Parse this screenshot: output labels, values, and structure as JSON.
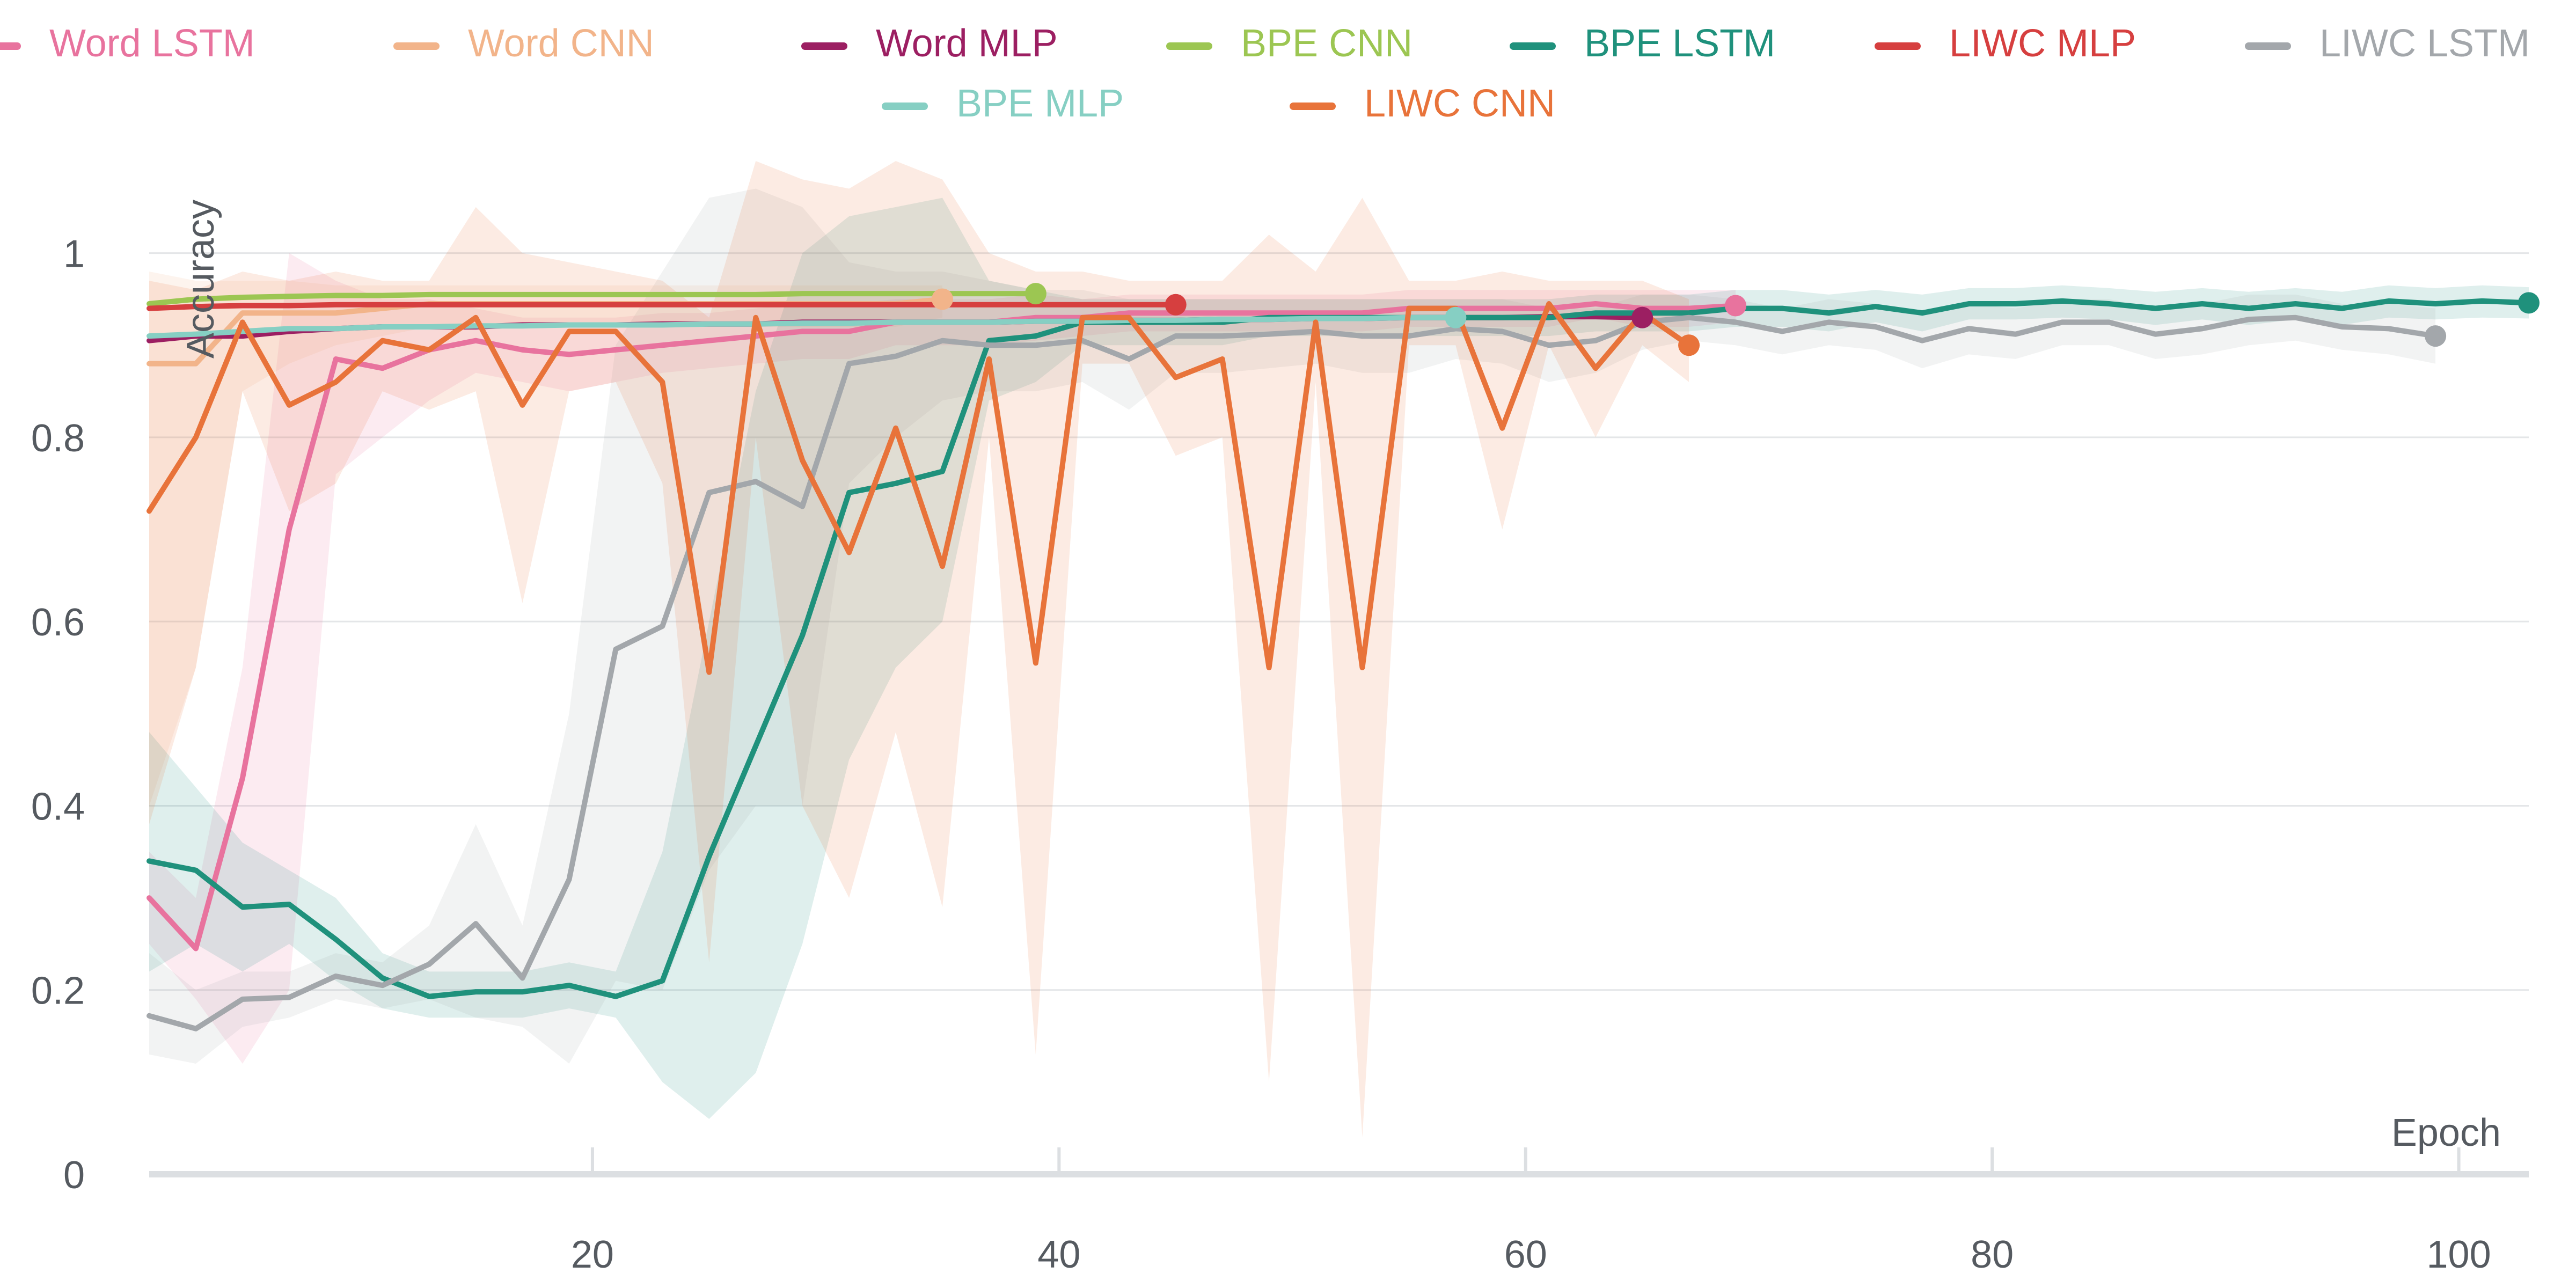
{
  "chart_data": {
    "type": "line",
    "title": "",
    "xlabel": "Epoch",
    "ylabel": "Accuracy",
    "xlim": [
      1,
      103
    ],
    "ylim": [
      0,
      1.1
    ],
    "x_ticks": [
      "20",
      "40",
      "60",
      "80",
      "100"
    ],
    "x_tick_values": [
      20,
      40,
      60,
      80,
      100
    ],
    "y_ticks": [
      "0",
      "0.2",
      "0.4",
      "0.6",
      "0.8",
      "1"
    ],
    "y_tick_values": [
      0,
      0.2,
      0.4,
      0.6,
      0.8,
      1.0
    ],
    "grid": "horizontal",
    "legend_position": "top",
    "series": [
      {
        "name": "Word LSTM",
        "color": "#e8739e",
        "x": [
          1,
          3,
          5,
          7,
          9,
          11,
          13,
          15,
          17,
          19,
          21,
          23,
          25,
          27,
          29,
          31,
          33,
          35,
          37,
          39,
          41,
          43,
          45,
          47,
          49,
          51,
          53,
          55,
          57,
          59,
          61,
          63,
          65,
          67,
          69
        ],
        "y": [
          0.3,
          0.245,
          0.43,
          0.7,
          0.885,
          0.875,
          0.895,
          0.905,
          0.895,
          0.89,
          0.895,
          0.9,
          0.905,
          0.91,
          0.915,
          0.915,
          0.925,
          0.925,
          0.925,
          0.93,
          0.93,
          0.935,
          0.935,
          0.935,
          0.935,
          0.935,
          0.935,
          0.94,
          0.94,
          0.94,
          0.94,
          0.945,
          0.94,
          0.94,
          0.943
        ],
        "band_upper": [
          0.35,
          0.3,
          0.55,
          1.0,
          0.97,
          0.95,
          0.95,
          0.94,
          0.93,
          0.93,
          0.93,
          0.935,
          0.935,
          0.94,
          0.945,
          0.945,
          0.95,
          0.95,
          0.95,
          0.955,
          0.95,
          0.955,
          0.955,
          0.955,
          0.955,
          0.955,
          0.955,
          0.96,
          0.96,
          0.96,
          0.96,
          0.96,
          0.96,
          0.96,
          0.96
        ],
        "band_lower": [
          0.25,
          0.19,
          0.12,
          0.2,
          0.76,
          0.8,
          0.84,
          0.87,
          0.86,
          0.85,
          0.86,
          0.87,
          0.875,
          0.88,
          0.885,
          0.885,
          0.9,
          0.9,
          0.9,
          0.905,
          0.91,
          0.915,
          0.915,
          0.915,
          0.915,
          0.915,
          0.915,
          0.92,
          0.92,
          0.92,
          0.92,
          0.93,
          0.92,
          0.92,
          0.925
        ]
      },
      {
        "name": "Word CNN",
        "color": "#f2b48a",
        "x": [
          1,
          3,
          5,
          7,
          9,
          11,
          13,
          15,
          17,
          19,
          21,
          23,
          25,
          27,
          29,
          31,
          33,
          35
        ],
        "y": [
          0.88,
          0.88,
          0.935,
          0.935,
          0.935,
          0.94,
          0.945,
          0.945,
          0.945,
          0.945,
          0.945,
          0.945,
          0.945,
          0.945,
          0.945,
          0.945,
          0.945,
          0.95
        ],
        "band_upper": [
          0.98,
          0.97,
          0.97,
          0.97,
          0.965,
          0.965,
          0.965,
          0.965,
          0.965,
          0.965,
          0.965,
          0.965,
          0.965,
          0.965,
          0.965,
          0.965,
          0.965,
          0.965
        ],
        "band_lower": [
          0.4,
          0.55,
          0.85,
          0.88,
          0.9,
          0.91,
          0.92,
          0.92,
          0.92,
          0.92,
          0.92,
          0.92,
          0.92,
          0.92,
          0.92,
          0.92,
          0.92,
          0.93
        ]
      },
      {
        "name": "Word MLP",
        "color": "#9c1f62",
        "x": [
          1,
          3,
          5,
          7,
          9,
          11,
          13,
          15,
          17,
          19,
          21,
          23,
          25,
          27,
          29,
          31,
          33,
          35,
          37,
          39,
          41,
          43,
          45,
          47,
          49,
          51,
          53,
          55,
          57,
          59,
          61,
          63,
          65
        ],
        "y": [
          0.905,
          0.91,
          0.91,
          0.915,
          0.918,
          0.92,
          0.92,
          0.92,
          0.922,
          0.922,
          0.922,
          0.923,
          0.923,
          0.923,
          0.925,
          0.925,
          0.925,
          0.925,
          0.925,
          0.926,
          0.926,
          0.927,
          0.927,
          0.928,
          0.928,
          0.929,
          0.929,
          0.93,
          0.93,
          0.93,
          0.931,
          0.931,
          0.93
        ]
      },
      {
        "name": "BPE CNN",
        "color": "#9cc652",
        "x": [
          1,
          3,
          5,
          7,
          9,
          11,
          13,
          15,
          17,
          19,
          21,
          23,
          25,
          27,
          29,
          31,
          33,
          35,
          37,
          39
        ],
        "y": [
          0.945,
          0.95,
          0.952,
          0.953,
          0.954,
          0.954,
          0.955,
          0.955,
          0.955,
          0.955,
          0.955,
          0.955,
          0.955,
          0.955,
          0.956,
          0.956,
          0.956,
          0.956,
          0.956,
          0.956
        ]
      },
      {
        "name": "BPE LSTM",
        "color": "#1f917c",
        "x": [
          1,
          3,
          5,
          7,
          9,
          11,
          13,
          15,
          17,
          19,
          21,
          23,
          25,
          27,
          29,
          31,
          33,
          35,
          37,
          39,
          41,
          43,
          45,
          47,
          49,
          51,
          53,
          55,
          57,
          59,
          61,
          63,
          65,
          67,
          69,
          71,
          73,
          75,
          77,
          79,
          81,
          83,
          85,
          87,
          89,
          91,
          93,
          95,
          97,
          99,
          101,
          103
        ],
        "y": [
          0.34,
          0.33,
          0.29,
          0.293,
          0.255,
          0.213,
          0.193,
          0.198,
          0.198,
          0.205,
          0.193,
          0.21,
          0.345,
          0.465,
          0.585,
          0.74,
          0.75,
          0.763,
          0.905,
          0.91,
          0.925,
          0.925,
          0.925,
          0.925,
          0.93,
          0.93,
          0.93,
          0.93,
          0.93,
          0.93,
          0.93,
          0.935,
          0.935,
          0.935,
          0.94,
          0.94,
          0.935,
          0.942,
          0.935,
          0.945,
          0.945,
          0.948,
          0.945,
          0.94,
          0.945,
          0.94,
          0.945,
          0.94,
          0.948,
          0.945,
          0.948,
          0.946
        ],
        "band_upper": [
          0.48,
          0.42,
          0.36,
          0.33,
          0.3,
          0.24,
          0.22,
          0.22,
          0.22,
          0.23,
          0.22,
          0.35,
          0.6,
          0.85,
          1.0,
          1.04,
          1.05,
          1.06,
          0.97,
          0.96,
          0.95,
          0.95,
          0.95,
          0.95,
          0.95,
          0.95,
          0.95,
          0.95,
          0.95,
          0.95,
          0.95,
          0.955,
          0.955,
          0.955,
          0.96,
          0.96,
          0.955,
          0.96,
          0.955,
          0.962,
          0.962,
          0.965,
          0.962,
          0.958,
          0.962,
          0.958,
          0.962,
          0.958,
          0.965,
          0.962,
          0.965,
          0.963
        ],
        "band_lower": [
          0.22,
          0.25,
          0.22,
          0.25,
          0.21,
          0.18,
          0.17,
          0.17,
          0.17,
          0.18,
          0.17,
          0.1,
          0.06,
          0.11,
          0.25,
          0.45,
          0.55,
          0.6,
          0.84,
          0.86,
          0.9,
          0.9,
          0.9,
          0.9,
          0.91,
          0.91,
          0.91,
          0.91,
          0.91,
          0.91,
          0.91,
          0.915,
          0.915,
          0.915,
          0.92,
          0.92,
          0.915,
          0.925,
          0.915,
          0.928,
          0.928,
          0.93,
          0.928,
          0.922,
          0.928,
          0.922,
          0.928,
          0.922,
          0.93,
          0.928,
          0.93,
          0.929
        ]
      },
      {
        "name": "LIWC MLP",
        "color": "#d63f3f",
        "x": [
          1,
          3,
          5,
          7,
          9,
          11,
          13,
          15,
          17,
          19,
          21,
          23,
          25,
          27,
          29,
          31,
          33,
          35,
          37,
          39,
          41,
          43,
          45
        ],
        "y": [
          0.94,
          0.942,
          0.943,
          0.943,
          0.944,
          0.944,
          0.944,
          0.944,
          0.944,
          0.944,
          0.944,
          0.944,
          0.944,
          0.944,
          0.944,
          0.944,
          0.944,
          0.944,
          0.944,
          0.944,
          0.944,
          0.944,
          0.944
        ]
      },
      {
        "name": "LIWC LSTM",
        "color": "#a3a7ab",
        "x": [
          1,
          3,
          5,
          7,
          9,
          11,
          13,
          15,
          17,
          19,
          21,
          23,
          25,
          27,
          29,
          31,
          33,
          35,
          37,
          39,
          41,
          43,
          45,
          47,
          49,
          51,
          53,
          55,
          57,
          59,
          61,
          63,
          65,
          67,
          69,
          71,
          73,
          75,
          77,
          79,
          81,
          83,
          85,
          87,
          89,
          91,
          93,
          95,
          97,
          99
        ],
        "y": [
          0.172,
          0.158,
          0.19,
          0.192,
          0.215,
          0.205,
          0.228,
          0.272,
          0.213,
          0.32,
          0.57,
          0.595,
          0.74,
          0.752,
          0.725,
          0.88,
          0.888,
          0.905,
          0.9,
          0.9,
          0.905,
          0.885,
          0.91,
          0.91,
          0.912,
          0.915,
          0.91,
          0.91,
          0.918,
          0.915,
          0.9,
          0.905,
          0.925,
          0.93,
          0.925,
          0.915,
          0.925,
          0.92,
          0.905,
          0.918,
          0.912,
          0.925,
          0.925,
          0.912,
          0.918,
          0.928,
          0.93,
          0.92,
          0.918,
          0.91
        ],
        "band_upper": [
          0.24,
          0.2,
          0.22,
          0.22,
          0.24,
          0.23,
          0.27,
          0.38,
          0.27,
          0.5,
          0.9,
          0.98,
          1.06,
          1.07,
          1.05,
          0.99,
          0.98,
          0.98,
          0.97,
          0.96,
          0.96,
          0.95,
          0.95,
          0.95,
          0.95,
          0.95,
          0.95,
          0.95,
          0.95,
          0.95,
          0.94,
          0.94,
          0.955,
          0.955,
          0.95,
          0.94,
          0.95,
          0.945,
          0.935,
          0.945,
          0.94,
          0.95,
          0.95,
          0.94,
          0.945,
          0.955,
          0.955,
          0.945,
          0.945,
          0.94
        ],
        "band_lower": [
          0.13,
          0.12,
          0.16,
          0.17,
          0.19,
          0.18,
          0.19,
          0.17,
          0.16,
          0.12,
          0.21,
          0.2,
          0.33,
          0.4,
          0.4,
          0.75,
          0.8,
          0.84,
          0.85,
          0.85,
          0.86,
          0.83,
          0.87,
          0.87,
          0.875,
          0.88,
          0.87,
          0.87,
          0.885,
          0.88,
          0.86,
          0.87,
          0.895,
          0.905,
          0.9,
          0.89,
          0.9,
          0.895,
          0.875,
          0.89,
          0.885,
          0.9,
          0.9,
          0.885,
          0.89,
          0.9,
          0.905,
          0.895,
          0.89,
          0.88
        ]
      },
      {
        "name": "BPE MLP",
        "color": "#86cfc3",
        "x": [
          1,
          3,
          5,
          7,
          9,
          11,
          13,
          15,
          17,
          19,
          21,
          23,
          25,
          27,
          29,
          31,
          33,
          35,
          37,
          39,
          41,
          43,
          45,
          47,
          49,
          51,
          53,
          55,
          57
        ],
        "y": [
          0.91,
          0.912,
          0.915,
          0.918,
          0.918,
          0.92,
          0.92,
          0.921,
          0.921,
          0.922,
          0.922,
          0.922,
          0.923,
          0.923,
          0.924,
          0.924,
          0.925,
          0.925,
          0.925,
          0.926,
          0.926,
          0.927,
          0.927,
          0.928,
          0.928,
          0.929,
          0.929,
          0.93,
          0.93
        ]
      },
      {
        "name": "LIWC CNN",
        "color": "#e8733a",
        "x": [
          1,
          3,
          5,
          7,
          9,
          11,
          13,
          15,
          17,
          19,
          21,
          23,
          25,
          27,
          29,
          31,
          33,
          35,
          37,
          39,
          41,
          43,
          45,
          47,
          49,
          51,
          53,
          55,
          57,
          59,
          61,
          63,
          65,
          67
        ],
        "y": [
          0.72,
          0.8,
          0.925,
          0.835,
          0.86,
          0.905,
          0.895,
          0.93,
          0.835,
          0.915,
          0.915,
          0.86,
          0.545,
          0.93,
          0.775,
          0.675,
          0.81,
          0.66,
          0.885,
          0.555,
          0.93,
          0.93,
          0.865,
          0.885,
          0.55,
          0.925,
          0.55,
          0.94,
          0.94,
          0.81,
          0.945,
          0.875,
          0.935,
          0.9
        ],
        "band_upper": [
          0.97,
          0.96,
          0.98,
          0.97,
          0.98,
          0.97,
          0.97,
          1.05,
          1.0,
          0.99,
          0.98,
          0.97,
          0.93,
          1.1,
          1.08,
          1.07,
          1.1,
          1.08,
          1.0,
          0.98,
          0.98,
          0.97,
          0.97,
          0.97,
          1.02,
          0.98,
          1.06,
          0.97,
          0.97,
          0.98,
          0.97,
          0.97,
          0.97,
          0.95
        ],
        "band_lower": [
          0.38,
          0.55,
          0.85,
          0.72,
          0.75,
          0.85,
          0.83,
          0.85,
          0.62,
          0.85,
          0.86,
          0.75,
          0.23,
          0.8,
          0.4,
          0.3,
          0.48,
          0.29,
          0.8,
          0.13,
          0.88,
          0.88,
          0.78,
          0.8,
          0.1,
          0.86,
          0.04,
          0.9,
          0.9,
          0.7,
          0.9,
          0.8,
          0.9,
          0.86
        ]
      }
    ]
  }
}
